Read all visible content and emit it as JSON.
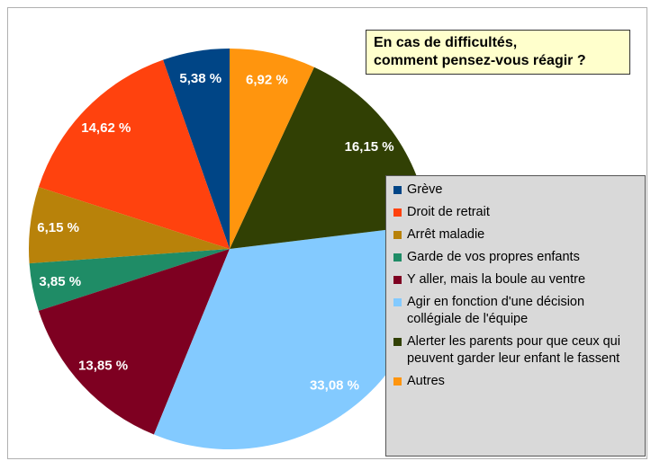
{
  "chart_data": {
    "type": "pie",
    "title": "En cas de difficultés,\ncomment pensez-vous réagir ?",
    "categories": [
      "Grève",
      "Droit de retrait",
      "Arrêt maladie",
      "Garde de vos propres enfants",
      "Y aller, mais la boule au ventre",
      "Agir en fonction d'une décision collégiale de l'équipe",
      "Alerter les parents pour que ceux qui peuvent garder leur enfant le fassent",
      "Autres"
    ],
    "values": [
      5.38,
      14.62,
      6.15,
      3.85,
      13.85,
      33.08,
      16.15,
      6.92
    ],
    "value_labels": [
      "5,38 %",
      "14,62 %",
      "6,15 %",
      "3,85 %",
      "13,85 %",
      "33,08 %",
      "16,15 %",
      "6,92 %"
    ],
    "colors": [
      "#004586",
      "#ff420e",
      "#b8820a",
      "#1f8c66",
      "#7e0021",
      "#83caff",
      "#314004",
      "#ff950e"
    ],
    "legend": "right"
  }
}
